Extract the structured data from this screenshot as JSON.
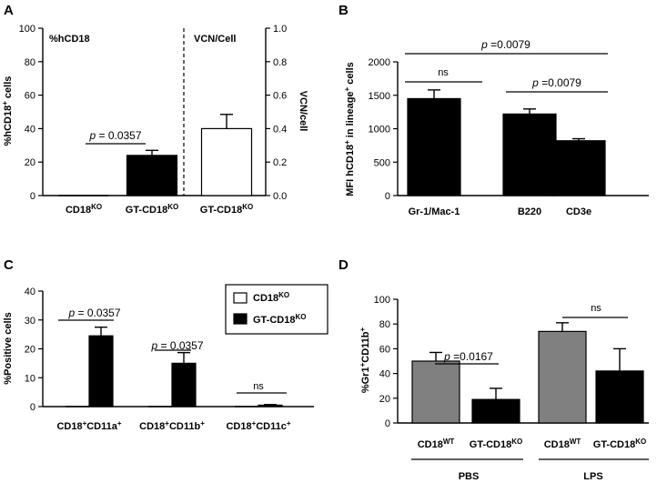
{
  "chart_data": [
    {
      "panel": "A",
      "type": "bar",
      "categories": [
        "CD18KO",
        "GT-CD18KO",
        "GT-CD18KO"
      ],
      "category_parts": [
        [
          "CD18",
          "KO"
        ],
        [
          "GT-CD18",
          "KO"
        ],
        [
          "GT-CD18",
          "KO"
        ]
      ],
      "left_axis": {
        "label_parts": [
          "%hCD18",
          "+",
          " cells"
        ],
        "ylim": [
          0,
          100
        ],
        "ticks": [
          "0",
          "20",
          "40",
          "60",
          "80",
          "100"
        ]
      },
      "right_axis": {
        "label": "VCN/cell",
        "ylim": [
          0,
          1.0
        ],
        "ticks": [
          "0.0",
          "0.2",
          "0.4",
          "0.6",
          "0.8",
          "1.0"
        ]
      },
      "series": [
        {
          "name": "%hCD18",
          "values": [
            0,
            24,
            null
          ],
          "errors": [
            0,
            3,
            null
          ],
          "fill": "#000000"
        },
        {
          "name": "VCN/Cell",
          "values": [
            null,
            null,
            0.4
          ],
          "errors": [
            null,
            null,
            0.085
          ],
          "fill": "#ffffff"
        }
      ],
      "section_labels": [
        "%hCD18",
        "VCN/Cell"
      ],
      "annotations": [
        {
          "label": "p",
          "value": "= 0.0357"
        }
      ]
    },
    {
      "panel": "B",
      "type": "bar",
      "categories": [
        "Gr-1/Mac-1",
        "B220",
        "CD3e"
      ],
      "values": [
        1450,
        1220,
        820
      ],
      "errors": [
        130,
        75,
        30
      ],
      "ylabel_parts": [
        "MFI hCD18",
        "+",
        " in lineage",
        "+",
        " cells"
      ],
      "ylim": [
        0,
        2000
      ],
      "ticks": [
        "0",
        "500",
        "1000",
        "1500",
        "2000"
      ],
      "annotations": [
        {
          "label": "p",
          "value": "=0.0079"
        },
        {
          "label": "",
          "value": "ns"
        },
        {
          "label": "p",
          "value": "=0.0079"
        }
      ]
    },
    {
      "panel": "C",
      "type": "bar",
      "groups": [
        "CD18+CD11a+",
        "CD18+CD11b+",
        "CD18+CD11c+"
      ],
      "group_parts": [
        [
          "CD18",
          "+",
          "CD11a",
          "+"
        ],
        [
          "CD18",
          "+",
          "CD11b",
          "+"
        ],
        [
          "CD18",
          "+",
          "CD11c",
          "+"
        ]
      ],
      "series": [
        {
          "name": "CD18KO",
          "name_parts": [
            "CD18",
            "KO"
          ],
          "values": [
            0,
            0,
            0
          ],
          "errors": [
            0,
            0,
            0
          ],
          "fill": "#ffffff"
        },
        {
          "name": "GT-CD18KO",
          "name_parts": [
            "GT-CD18",
            "KO"
          ],
          "values": [
            24.5,
            15,
            0.5
          ],
          "errors": [
            3,
            3.7,
            0.2
          ],
          "fill": "#000000"
        }
      ],
      "ylabel": "%Positive cells",
      "ylim": [
        0,
        40
      ],
      "ticks": [
        "0",
        "10",
        "20",
        "30",
        "40"
      ],
      "annotations": [
        {
          "label": "p",
          "value": "= 0.0357"
        },
        {
          "label": "p",
          "value": "= 0.0357"
        },
        {
          "label": "",
          "value": "ns"
        }
      ]
    },
    {
      "panel": "D",
      "type": "bar",
      "categories": [
        "CD18WT",
        "GT-CD18KO",
        "CD18WT",
        "GT-CD18KO"
      ],
      "category_parts": [
        [
          "CD18",
          "WT"
        ],
        [
          "GT-CD18",
          "KO"
        ],
        [
          "CD18",
          "WT"
        ],
        [
          "GT-CD18",
          "KO"
        ]
      ],
      "groups": [
        "PBS",
        "LPS"
      ],
      "values": [
        50,
        19,
        74,
        42
      ],
      "errors": [
        7,
        9,
        7,
        18
      ],
      "fills": [
        "#808080",
        "#000000",
        "#808080",
        "#000000"
      ],
      "ylabel_parts": [
        "%Gr1",
        "+",
        "CD11b",
        "+"
      ],
      "ylim": [
        0,
        100
      ],
      "ticks": [
        "0",
        "20",
        "40",
        "60",
        "80",
        "100"
      ],
      "annotations": [
        {
          "label": "p",
          "value": "=0.0167"
        },
        {
          "label": "",
          "value": "ns"
        }
      ]
    }
  ]
}
